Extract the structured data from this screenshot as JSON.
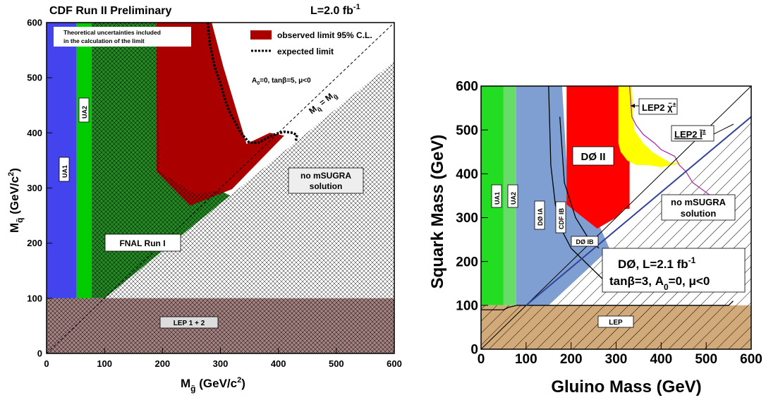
{
  "chart_data": [
    {
      "type": "area",
      "header_left": "CDF Run II Preliminary",
      "header_right": "L=2.0 fb",
      "header_right_sup": "-1",
      "xlabel": "M",
      "xlabel_sub": "g̃",
      "xlabel_unit": " (GeV/c",
      "xlabel_unit_sup": "2",
      "xlabel_close": ")",
      "ylabel": "M",
      "ylabel_sub": "q̃",
      "ylabel_unit": " (GeV/c",
      "ylabel_unit_sup": "2",
      "ylabel_close": ")",
      "xlim": [
        0,
        600
      ],
      "ylim": [
        0,
        600
      ],
      "xticks": [
        0,
        100,
        200,
        300,
        400,
        500,
        600
      ],
      "yticks": [
        0,
        100,
        200,
        300,
        400,
        500,
        600
      ],
      "note_line1": "Theoretical uncertainties included",
      "note_line2": "in the calculation of the limit",
      "legend": [
        {
          "label": "observed limit 95% C.L.",
          "style": "fill",
          "color": "#aa0000"
        },
        {
          "label": "expected limit",
          "style": "dotted",
          "color": "#000000"
        }
      ],
      "params_text": "A",
      "params_sub": "0",
      "params_rest": "=0, tanβ=5, μ<0",
      "diagonal_label": "M",
      "diagonal_sub1": "q̃",
      "diagonal_eq": " = M",
      "diagonal_sub2": "g̃",
      "labels": {
        "ua1": "UA1",
        "ua2": "UA2",
        "fnal": "FNAL Run I",
        "nosugra_1": "no mSUGRA",
        "nosugra_2": "solution",
        "lep": "LEP 1 + 2"
      },
      "regions": [
        {
          "name": "UA1",
          "color": "#4444ee",
          "points": [
            [
              0,
              0
            ],
            [
              52,
              0
            ],
            [
              52,
              600
            ],
            [
              0,
              600
            ]
          ]
        },
        {
          "name": "UA2",
          "color": "#00cc00",
          "points": [
            [
              52,
              0
            ],
            [
              78,
              0
            ],
            [
              78,
              600
            ],
            [
              52,
              600
            ]
          ]
        },
        {
          "name": "FNAL Run I",
          "color": "#228822",
          "points": [
            [
              78,
              100
            ],
            [
              100,
              100
            ],
            [
              240,
              100
            ],
            [
              380,
              100
            ],
            [
              565,
              155
            ],
            [
              300,
              295
            ],
            [
              255,
              290
            ],
            [
              195,
              330
            ],
            [
              190,
              600
            ],
            [
              78,
              600
            ]
          ]
        },
        {
          "name": "observed limit 95% C.L.",
          "color": "#aa0000",
          "points": [
            [
              190,
              330
            ],
            [
              248,
              268
            ],
            [
              320,
              298
            ],
            [
              410,
              395
            ],
            [
              385,
              400
            ],
            [
              345,
              380
            ],
            [
              305,
              520
            ],
            [
              285,
              600
            ],
            [
              190,
              600
            ]
          ]
        },
        {
          "name": "no mSUGRA solution",
          "color": "#ffffff",
          "points": [
            [
              100,
              100
            ],
            [
              600,
              100
            ],
            [
              600,
              530
            ]
          ]
        },
        {
          "name": "LEP 1 + 2",
          "color": "#a38080",
          "points": [
            [
              0,
              0
            ],
            [
              600,
              0
            ],
            [
              600,
              100
            ],
            [
              0,
              100
            ]
          ]
        }
      ],
      "expected_limit": {
        "x": [
          278,
          282,
          290,
          300,
          308,
          315,
          325,
          335,
          350,
          365,
          380,
          395,
          410,
          425,
          432,
          430
        ],
        "y": [
          600,
          560,
          520,
          490,
          460,
          440,
          420,
          400,
          382,
          382,
          390,
          398,
          402,
          400,
          396,
          385
        ]
      }
    },
    {
      "type": "area",
      "xlabel": "Gluino Mass (GeV)",
      "ylabel": "Squark Mass (GeV)",
      "xlim": [
        0,
        600
      ],
      "ylim": [
        0,
        600
      ],
      "xticks": [
        0,
        100,
        200,
        300,
        400,
        500,
        600
      ],
      "yticks": [
        0,
        100,
        200,
        300,
        400,
        500,
        600
      ],
      "labels": {
        "ua1": "UA1",
        "ua2": "UA2",
        "d0ia": "DØ IA",
        "cdfib": "CDF IB",
        "d0ib": "DØ IB",
        "d0ii": "DØ II",
        "lep2_chargino": "LEP2 χ̃",
        "lep2_chargino_sup": "±",
        "lep2_slepton": "LEP2 l̃",
        "lep2_slepton_sup": "±",
        "nosugra_1": "no mSUGRA",
        "nosugra_2": "solution",
        "lep": "LEP"
      },
      "info_line1": "DØ, L=2.1 fb",
      "info_line1_sup": "-1",
      "info_line2": "tanβ=3, A",
      "info_line2_sub": "0",
      "info_line2_rest": "=0, μ<0",
      "regions": [
        {
          "name": "UA1",
          "color": "#22dd22",
          "points": [
            [
              0,
              100
            ],
            [
              50,
              100
            ],
            [
              50,
              600
            ],
            [
              0,
              600
            ]
          ]
        },
        {
          "name": "UA2",
          "color": "#66dd66",
          "points": [
            [
              50,
              100
            ],
            [
              78,
              100
            ],
            [
              78,
              600
            ],
            [
              50,
              600
            ]
          ]
        },
        {
          "name": "DØ IA / CDF IB / DØ IB",
          "color": "#7f9fd2",
          "points": [
            [
              78,
              100
            ],
            [
              400,
              100
            ],
            [
              300,
              195
            ],
            [
              255,
              300
            ],
            [
              195,
              335
            ],
            [
              180,
              600
            ],
            [
              78,
              600
            ]
          ]
        },
        {
          "name": "DØ II",
          "color": "#ff0000",
          "points": [
            [
              190,
              330
            ],
            [
              258,
              275
            ],
            [
              300,
              300
            ],
            [
              318,
              320
            ],
            [
              330,
              320
            ],
            [
              330,
              600
            ],
            [
              190,
              600
            ]
          ]
        },
        {
          "name": "LEP2 chargino band",
          "color": "#ffff00",
          "points": [
            [
              305,
              600
            ],
            [
              335,
              600
            ],
            [
              340,
              500
            ],
            [
              360,
              470
            ],
            [
              380,
              450
            ],
            [
              420,
              425
            ],
            [
              450,
              425
            ],
            [
              400,
              415
            ],
            [
              370,
              420
            ],
            [
              345,
              420
            ],
            [
              325,
              430
            ],
            [
              310,
              450
            ],
            [
              305,
              470
            ]
          ]
        },
        {
          "name": "no mSUGRA solution",
          "color": "#ffffff",
          "points": [
            [
              150,
              100
            ],
            [
              600,
              100
            ],
            [
              600,
              530
            ]
          ]
        },
        {
          "name": "LEP",
          "color": "#d2aa7a",
          "points": [
            [
              0,
              0
            ],
            [
              600,
              0
            ],
            [
              600,
              100
            ],
            [
              0,
              100
            ]
          ]
        }
      ],
      "boundaries": [
        {
          "name": "DØ IA",
          "x": [
            150,
            155,
            165,
            180,
            200,
            240,
            270,
            300,
            330
          ],
          "y": [
            600,
            420,
            330,
            270,
            230,
            190,
            160,
            150,
            145
          ]
        },
        {
          "name": "CDF IB",
          "x": [
            175,
            185,
            210,
            240,
            262
          ],
          "y": [
            530,
            380,
            300,
            250,
            230
          ]
        },
        {
          "name": "LEP2 chargino",
          "x": [
            330,
            335,
            345,
            360,
            385,
            400,
            430,
            440,
            455,
            470,
            490,
            510,
            530
          ],
          "y": [
            600,
            530,
            510,
            490,
            470,
            455,
            440,
            420,
            405,
            380,
            365,
            350,
            335
          ]
        },
        {
          "name": "LEP",
          "x": [
            0,
            50,
            60,
            80,
            100,
            150,
            200,
            250,
            300,
            350,
            400,
            450,
            500,
            550,
            560
          ],
          "y": [
            90,
            90,
            95,
            100,
            100,
            100,
            100,
            100,
            100,
            100,
            100,
            100,
            100,
            100,
            110
          ]
        }
      ]
    }
  ]
}
